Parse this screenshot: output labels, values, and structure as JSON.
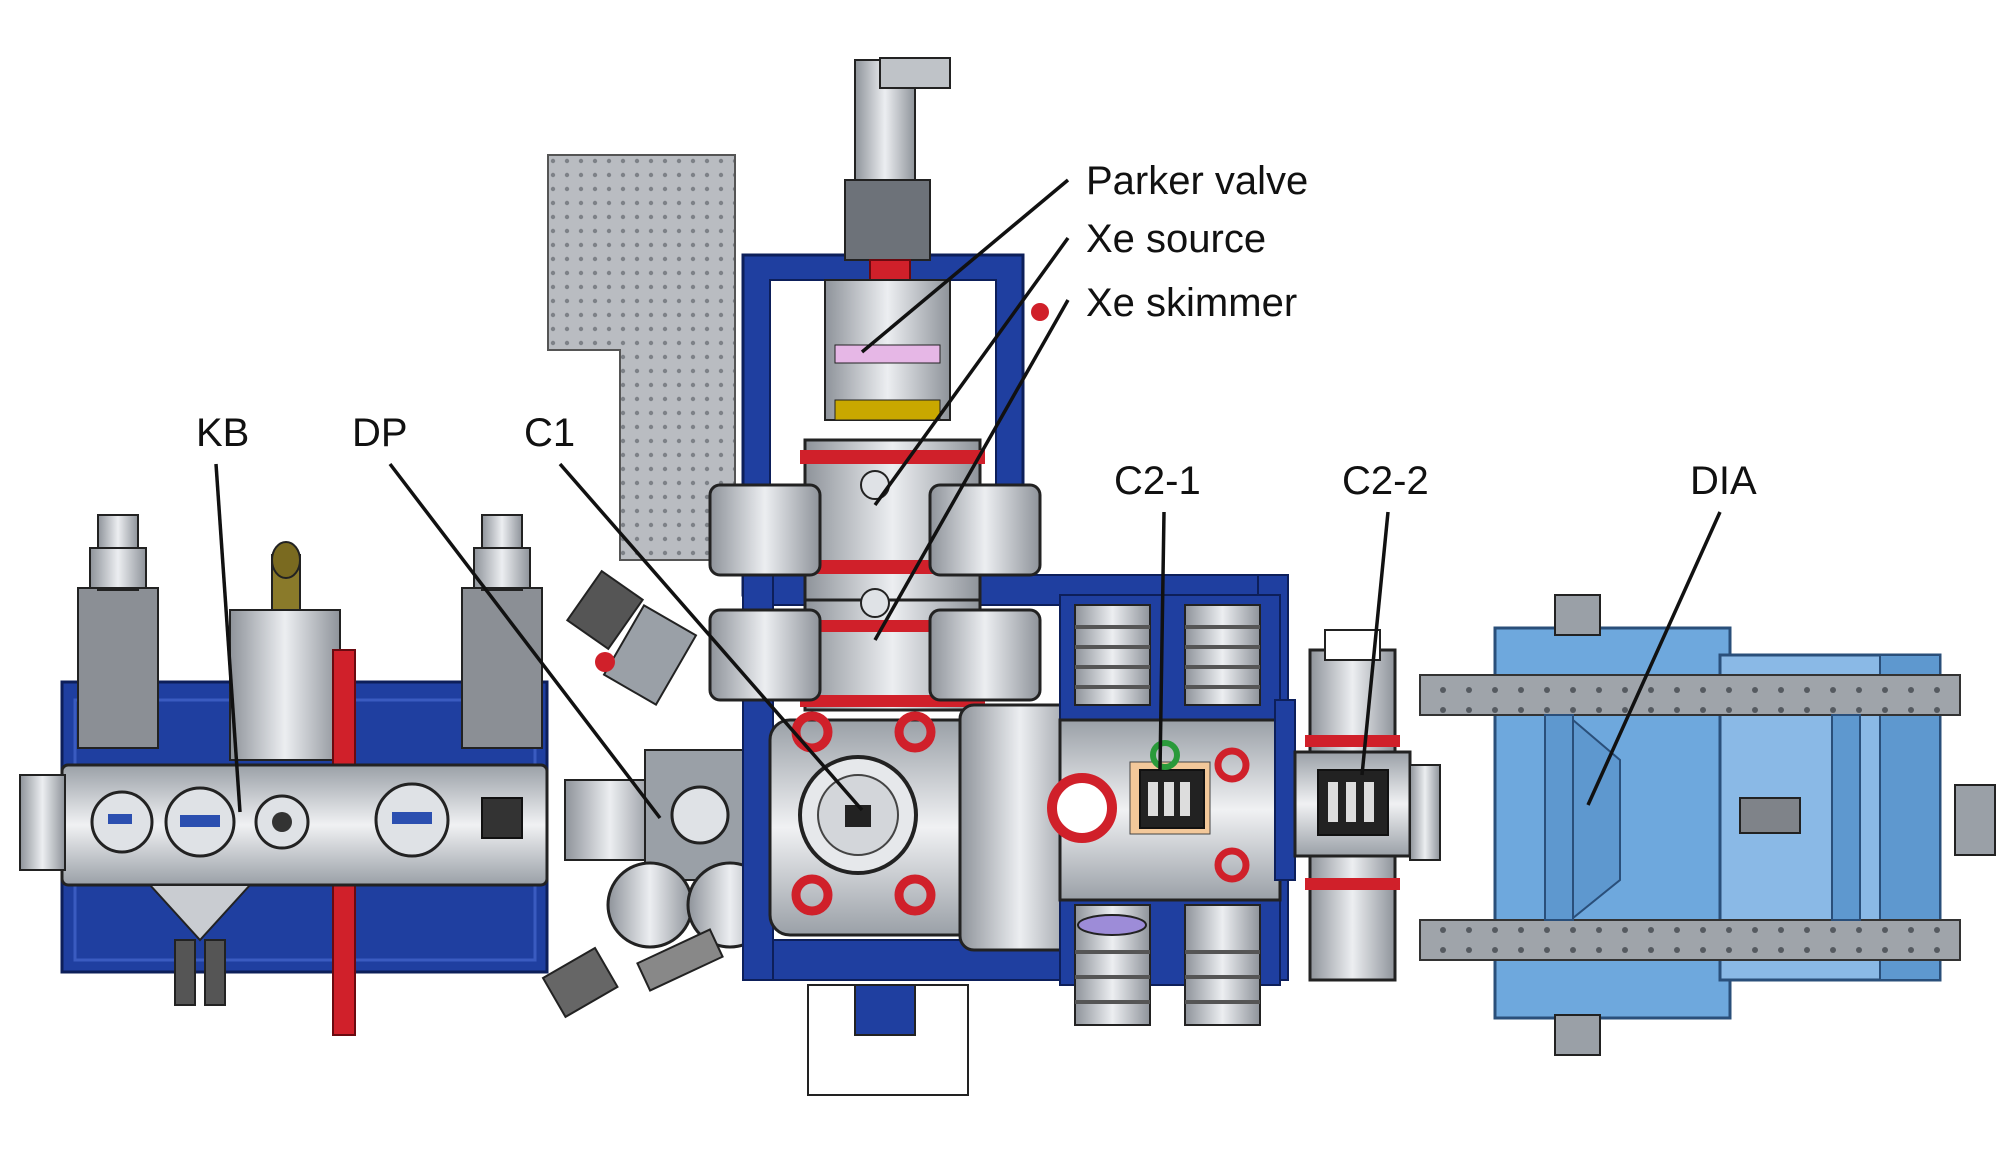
{
  "labels": {
    "parker_valve": "Parker valve",
    "xe_source": "Xe source",
    "xe_skimmer": "Xe skimmer",
    "kb": "KB",
    "dp": "DP",
    "c1": "C1",
    "c2_1": "C2-1",
    "c2_2": "C2-2",
    "dia": "DIA"
  },
  "colors": {
    "frame_blue": "#1f3fa0",
    "dia_blue": "#6ea8dd",
    "flange_red": "#d0202a",
    "steel_gray": "#c8cbd0",
    "breadboard_gray": "#b9bcc1",
    "outline": "#222222"
  }
}
